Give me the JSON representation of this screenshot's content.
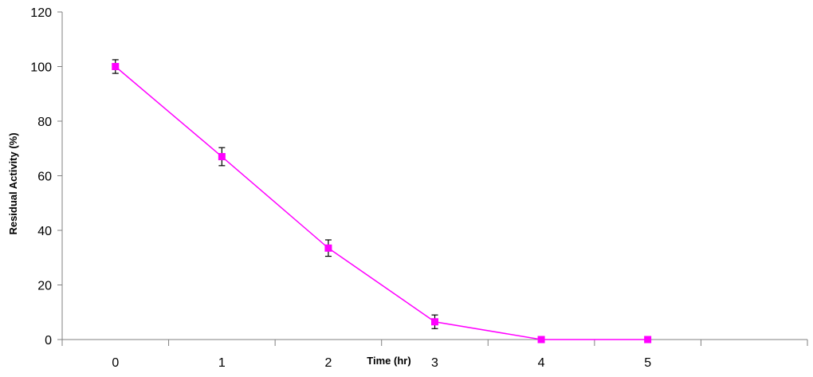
{
  "chart_data": {
    "type": "line",
    "title": "",
    "xlabel": "Time (hr)",
    "ylabel": "Residual Activity (%)",
    "x": [
      0,
      1,
      2,
      3,
      4,
      5
    ],
    "x_tick_labels": [
      "0",
      "1",
      "2",
      "3",
      "4",
      "5"
    ],
    "xlim": [
      -0.5,
      6.5
    ],
    "ylim": [
      0,
      120
    ],
    "y_ticks": [
      0,
      20,
      40,
      60,
      80,
      100,
      120
    ],
    "y_tick_labels": [
      "0",
      "20",
      "40",
      "60",
      "80",
      "100",
      "120"
    ],
    "grid": false,
    "legend": "none",
    "series": [
      {
        "values": [
          100,
          67,
          33.5,
          6.5,
          0,
          0
        ],
        "error": [
          2.5,
          3.3,
          3,
          2.5,
          0,
          0
        ],
        "color": "#ff00ff",
        "marker": "square"
      }
    ],
    "colors": {
      "axis": "#808080",
      "errorbar": "#000000",
      "text": "#000000"
    }
  }
}
